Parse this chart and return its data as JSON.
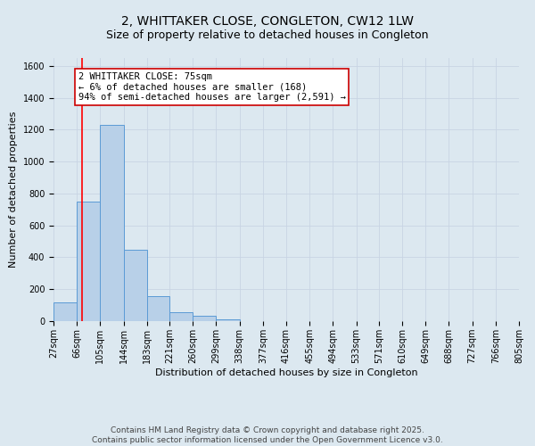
{
  "title": "2, WHITTAKER CLOSE, CONGLETON, CW12 1LW",
  "subtitle": "Size of property relative to detached houses in Congleton",
  "xlabel": "Distribution of detached houses by size in Congleton",
  "ylabel": "Number of detached properties",
  "bar_edges": [
    27,
    66,
    105,
    144,
    183,
    221,
    260,
    299,
    338,
    377,
    416,
    455,
    494,
    533,
    571,
    610,
    649,
    688,
    727,
    766,
    805
  ],
  "bar_heights": [
    120,
    750,
    1230,
    450,
    155,
    55,
    35,
    10,
    0,
    0,
    0,
    0,
    0,
    0,
    0,
    0,
    0,
    0,
    0,
    0
  ],
  "bar_color": "#b8d0e8",
  "bar_edge_color": "#5b9bd5",
  "red_line_x": 75,
  "annotation_text": "2 WHITTAKER CLOSE: 75sqm\n← 6% of detached houses are smaller (168)\n94% of semi-detached houses are larger (2,591) →",
  "annotation_box_color": "#ffffff",
  "annotation_box_edge_color": "#cc0000",
  "grid_color": "#c8d4e4",
  "background_color": "#dce8f0",
  "ylim": [
    0,
    1650
  ],
  "yticks": [
    0,
    200,
    400,
    600,
    800,
    1000,
    1200,
    1400,
    1600
  ],
  "tick_labels": [
    "27sqm",
    "66sqm",
    "105sqm",
    "144sqm",
    "183sqm",
    "221sqm",
    "260sqm",
    "299sqm",
    "338sqm",
    "377sqm",
    "416sqm",
    "455sqm",
    "494sqm",
    "533sqm",
    "571sqm",
    "610sqm",
    "649sqm",
    "688sqm",
    "727sqm",
    "766sqm",
    "805sqm"
  ],
  "footer_text": "Contains HM Land Registry data © Crown copyright and database right 2025.\nContains public sector information licensed under the Open Government Licence v3.0.",
  "title_fontsize": 10,
  "subtitle_fontsize": 9,
  "axis_label_fontsize": 8,
  "tick_fontsize": 7,
  "annotation_fontsize": 7.5,
  "footer_fontsize": 6.5
}
